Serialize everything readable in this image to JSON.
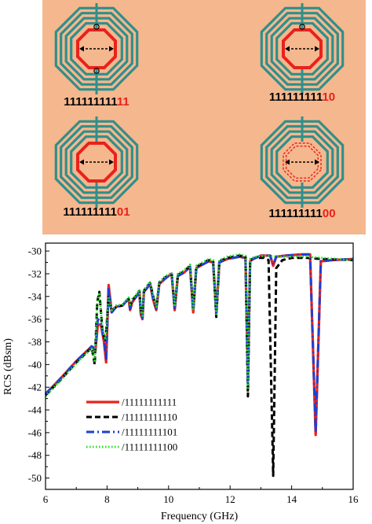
{
  "colors": {
    "panel_background": "#f5b78e",
    "coil": "#2f8f8b",
    "highlight_red": "#e8221c",
    "black": "#000000"
  },
  "structures": [
    {
      "position": "top-left",
      "prefix": "111111111",
      "suffix": "11",
      "center_ring": "solid",
      "markers": "two-circles"
    },
    {
      "position": "top-right",
      "prefix": "111111111",
      "suffix": "10",
      "center_ring": "solid",
      "markers": "one-circle"
    },
    {
      "position": "bottom-left",
      "prefix": "111111111",
      "suffix": "01",
      "center_ring": "solid",
      "markers": "none"
    },
    {
      "position": "bottom-right",
      "prefix": "111111111",
      "suffix": "00",
      "center_ring": "dashed",
      "markers": "none"
    }
  ],
  "chart_data": {
    "type": "line",
    "title": "",
    "xlabel": "Frequency (GHz)",
    "ylabel": "RCS (dBsm)",
    "xlim": [
      6,
      16
    ],
    "ylim": [
      -51,
      -29.3
    ],
    "xticks": [
      6,
      8,
      10,
      12,
      14,
      16
    ],
    "yticks": [
      -30,
      -32,
      -34,
      -36,
      -38,
      -40,
      -42,
      -44,
      -46,
      -48,
      -50
    ],
    "grid": false,
    "legend_position": "bottom-left",
    "series": [
      {
        "name": "/11111111111",
        "color": "#e8221c",
        "style": "solid",
        "x": [
          6.0,
          6.5,
          7.0,
          7.5,
          7.62,
          7.7,
          7.8,
          7.9,
          7.97,
          8.05,
          8.15,
          8.3,
          8.5,
          8.7,
          8.75,
          8.82,
          8.9,
          9.05,
          9.1,
          9.15,
          9.2,
          9.4,
          9.5,
          9.6,
          9.7,
          9.9,
          10.1,
          10.2,
          10.3,
          10.5,
          10.7,
          10.8,
          10.9,
          11.1,
          11.3,
          11.45,
          11.55,
          11.65,
          11.9,
          12.3,
          12.5,
          12.58,
          12.65,
          12.75,
          13.0,
          13.3,
          13.4,
          13.5,
          13.8,
          14.3,
          14.6,
          14.78,
          14.95,
          15.3,
          16.0
        ],
        "y": [
          -42.6,
          -41.2,
          -39.7,
          -38.4,
          -38.8,
          -36.5,
          -36.5,
          -38.0,
          -39.8,
          -33.0,
          -35.4,
          -34.9,
          -34.8,
          -34.2,
          -35.2,
          -34.5,
          -34.2,
          -33.6,
          -35.6,
          -36.0,
          -33.6,
          -32.9,
          -34.3,
          -35.2,
          -32.9,
          -32.4,
          -32.0,
          -35.2,
          -32.2,
          -31.9,
          -31.4,
          -35.4,
          -31.5,
          -31.2,
          -30.9,
          -31.0,
          -35.5,
          -31.0,
          -30.7,
          -30.5,
          -30.6,
          -41.5,
          -30.9,
          -30.7,
          -30.4,
          -30.4,
          -31.3,
          -30.5,
          -30.4,
          -30.3,
          -30.3,
          -46.2,
          -30.9,
          -30.8,
          -30.7
        ]
      },
      {
        "name": "/11111111110",
        "color": "#000000",
        "style": "dash",
        "x": [
          6.0,
          6.5,
          7.0,
          7.5,
          7.6,
          7.68,
          7.75,
          7.85,
          7.95,
          8.05,
          8.15,
          8.3,
          8.5,
          8.7,
          8.75,
          8.82,
          8.9,
          9.05,
          9.1,
          9.15,
          9.2,
          9.4,
          9.5,
          9.6,
          9.7,
          9.9,
          10.1,
          10.2,
          10.3,
          10.5,
          10.7,
          10.8,
          10.9,
          11.1,
          11.3,
          11.45,
          11.55,
          11.65,
          11.9,
          12.3,
          12.5,
          12.58,
          12.65,
          12.8,
          13.1,
          13.25,
          13.4,
          13.5,
          13.7,
          14.0,
          14.5,
          15.0,
          16.0
        ],
        "y": [
          -42.7,
          -41.3,
          -39.8,
          -38.5,
          -40.0,
          -34.5,
          -33.6,
          -37.0,
          -38.0,
          -34.0,
          -35.3,
          -34.9,
          -34.8,
          -34.2,
          -34.8,
          -34.3,
          -34.1,
          -33.5,
          -35.3,
          -35.8,
          -33.5,
          -32.8,
          -34.0,
          -35.0,
          -32.8,
          -32.3,
          -32.0,
          -35.0,
          -32.1,
          -31.8,
          -31.3,
          -35.2,
          -31.4,
          -31.1,
          -30.8,
          -30.9,
          -35.8,
          -30.9,
          -30.6,
          -30.4,
          -30.5,
          -42.8,
          -30.8,
          -30.6,
          -30.6,
          -30.8,
          -49.8,
          -31.5,
          -30.8,
          -30.6,
          -30.6,
          -30.7,
          -30.8
        ]
      },
      {
        "name": "/11111111101",
        "color": "#1f3fd1",
        "style": "dashdot",
        "x": [
          6.0,
          6.5,
          7.0,
          7.5,
          7.62,
          7.7,
          7.8,
          7.9,
          7.97,
          8.05,
          8.15,
          8.3,
          8.5,
          8.7,
          8.75,
          8.82,
          8.9,
          9.05,
          9.1,
          9.15,
          9.2,
          9.4,
          9.5,
          9.6,
          9.7,
          9.9,
          10.1,
          10.2,
          10.3,
          10.5,
          10.7,
          10.8,
          10.9,
          11.1,
          11.3,
          11.45,
          11.55,
          11.65,
          11.9,
          12.3,
          12.5,
          12.58,
          12.65,
          12.75,
          13.0,
          13.3,
          13.4,
          13.5,
          13.8,
          14.3,
          14.6,
          14.78,
          14.95,
          15.3,
          16.0
        ],
        "y": [
          -42.6,
          -41.2,
          -39.7,
          -38.4,
          -38.6,
          -36.0,
          -36.3,
          -37.8,
          -39.5,
          -33.2,
          -35.4,
          -34.9,
          -34.8,
          -34.2,
          -35.1,
          -34.5,
          -34.2,
          -33.6,
          -35.5,
          -35.9,
          -33.6,
          -32.9,
          -34.2,
          -35.1,
          -32.9,
          -32.4,
          -32.0,
          -35.1,
          -32.2,
          -31.9,
          -31.4,
          -35.3,
          -31.5,
          -31.2,
          -30.9,
          -31.0,
          -35.4,
          -31.0,
          -30.7,
          -30.5,
          -30.6,
          -41.8,
          -30.9,
          -30.7,
          -30.4,
          -30.4,
          -31.2,
          -30.5,
          -30.4,
          -30.3,
          -30.3,
          -46.0,
          -30.9,
          -30.8,
          -30.7
        ]
      },
      {
        "name": "/11111111100",
        "color": "#22dd22",
        "style": "dot",
        "x": [
          6.0,
          6.5,
          7.0,
          7.5,
          7.6,
          7.68,
          7.75,
          7.85,
          7.95,
          8.05,
          8.15,
          8.3,
          8.5,
          8.7,
          8.75,
          8.82,
          8.9,
          9.05,
          9.1,
          9.15,
          9.2,
          9.4,
          9.5,
          9.6,
          9.7,
          9.9,
          10.1,
          10.2,
          10.3,
          10.5,
          10.7,
          10.8,
          10.9,
          11.1,
          11.3,
          11.45,
          11.55,
          11.65,
          11.9,
          12.3,
          12.5,
          12.58,
          12.65,
          12.8,
          13.2,
          13.6,
          14.0,
          14.5,
          15.0,
          16.0
        ],
        "y": [
          -42.8,
          -41.4,
          -39.9,
          -38.6,
          -39.8,
          -34.6,
          -33.8,
          -36.8,
          -37.8,
          -34.0,
          -35.2,
          -34.8,
          -34.7,
          -34.1,
          -34.7,
          -34.2,
          -34.0,
          -33.4,
          -35.2,
          -35.7,
          -33.4,
          -32.7,
          -33.9,
          -34.9,
          -32.7,
          -32.2,
          -31.9,
          -34.9,
          -32.0,
          -31.7,
          -31.2,
          -35.1,
          -31.3,
          -31.0,
          -30.7,
          -30.8,
          -35.7,
          -30.8,
          -30.5,
          -30.3,
          -30.4,
          -42.2,
          -30.7,
          -30.5,
          -30.4,
          -30.5,
          -30.5,
          -30.5,
          -30.6,
          -30.8
        ]
      }
    ]
  }
}
